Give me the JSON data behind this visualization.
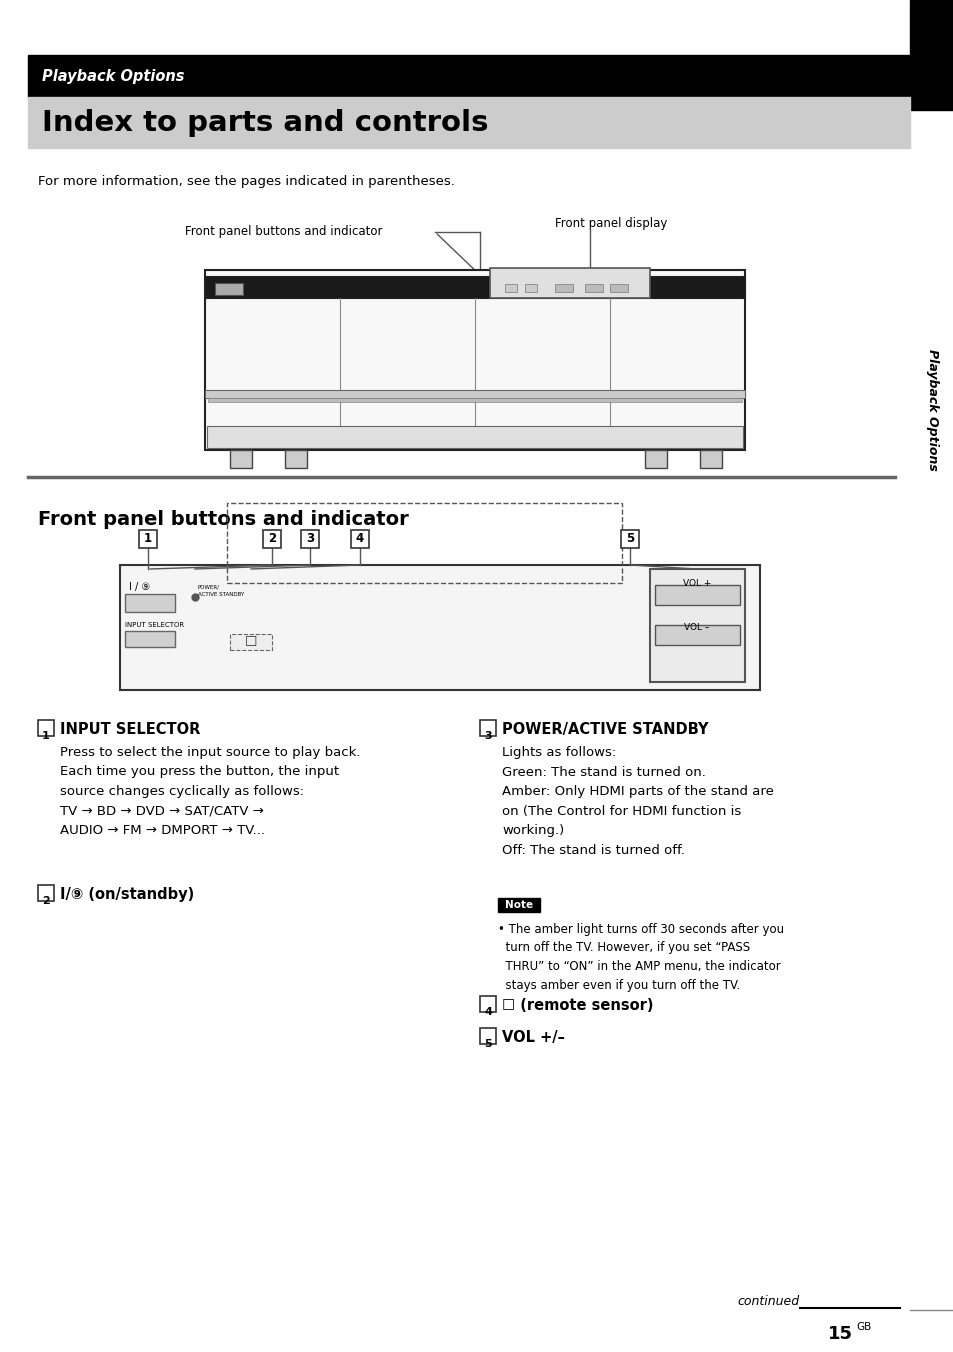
{
  "page_bg": "#ffffff",
  "header_bg": "#000000",
  "header_text": "Playback Options",
  "header_text_color": "#ffffff",
  "title_bg": "#cccccc",
  "title_text": "Index to parts and controls",
  "title_text_color": "#000000",
  "sidebar_bg": "#000000",
  "sidebar_text": "Playback Options",
  "sidebar_text_color": "#ffffff",
  "section2_title": "Front panel buttons and indicator",
  "intro_text": "For more information, see the pages indicated in parentheses.",
  "label_front_panel": "Front panel buttons and indicator",
  "label_front_display": "Front panel display",
  "continued_text": "continued",
  "page_num": "15",
  "page_suffix": "GB"
}
